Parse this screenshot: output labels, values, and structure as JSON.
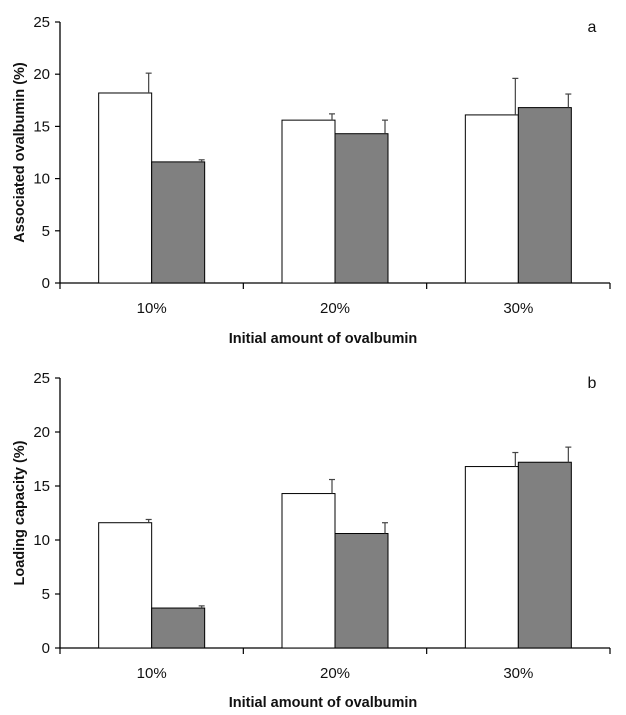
{
  "chart_data": [
    {
      "type": "bar",
      "panel_label": "a",
      "categories": [
        "10%",
        "20%",
        "30%"
      ],
      "series": [
        {
          "values": [
            18.2,
            15.6,
            16.1
          ],
          "errors": [
            1.9,
            0.6,
            3.5
          ],
          "color": "#ffffff"
        },
        {
          "values": [
            11.6,
            14.3,
            16.8
          ],
          "errors": [
            0.2,
            1.3,
            1.3
          ],
          "color": "#808080"
        }
      ],
      "xlabel": "Initial amount of ovalbumin",
      "ylabel": "Associated ovalbumin (%)",
      "ylim": [
        0,
        25
      ],
      "yticks": [
        0,
        5,
        10,
        15,
        20,
        25
      ],
      "grid": false
    },
    {
      "type": "bar",
      "panel_label": "b",
      "categories": [
        "10%",
        "20%",
        "30%"
      ],
      "series": [
        {
          "values": [
            11.6,
            14.3,
            16.8
          ],
          "errors": [
            0.3,
            1.3,
            1.3
          ],
          "color": "#ffffff"
        },
        {
          "values": [
            3.7,
            10.6,
            17.2
          ],
          "errors": [
            0.2,
            1.0,
            1.4
          ],
          "color": "#808080"
        }
      ],
      "xlabel": "Initial amount of ovalbumin",
      "ylabel": "Loading capacity (%)",
      "ylim": [
        0,
        25
      ],
      "yticks": [
        0,
        5,
        10,
        15,
        20,
        25
      ],
      "grid": false
    }
  ]
}
